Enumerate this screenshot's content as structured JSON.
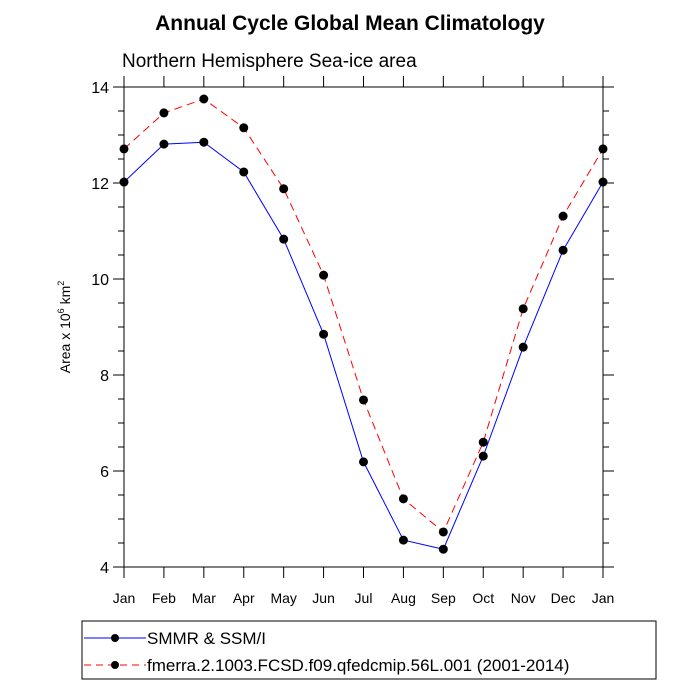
{
  "chart_data": {
    "type": "line",
    "title": "Annual Cycle Global Mean Climatology",
    "subtitle": "Northern Hemisphere Sea-ice area",
    "ylabel_prefix": "Area x 10",
    "ylabel_exp": "6",
    "ylabel_unit": " km",
    "ylabel_unit_exp": "2",
    "xlabel": "",
    "categories": [
      "Jan",
      "Feb",
      "Mar",
      "Apr",
      "May",
      "Jun",
      "Jul",
      "Aug",
      "Sep",
      "Oct",
      "Nov",
      "Dec",
      "Jan"
    ],
    "ylim": [
      4,
      14
    ],
    "yticks": [
      4,
      6,
      8,
      10,
      12,
      14
    ],
    "grid": false,
    "legend_placement": "bottom",
    "series": [
      {
        "name": "SMMR & SSM/I",
        "color": "#0000ff",
        "dash": "solid",
        "values": [
          12.02,
          12.81,
          12.85,
          12.23,
          10.83,
          8.85,
          6.19,
          4.56,
          4.37,
          6.31,
          8.58,
          10.6,
          12.02
        ]
      },
      {
        "name": "fmerra.2.1003.FCSD.f09.qfedcmip.56L.001 (2001-2014)",
        "color": "#ff0000",
        "dash": "dashed",
        "values": [
          12.71,
          13.46,
          13.75,
          13.15,
          11.88,
          10.08,
          7.48,
          5.42,
          4.73,
          6.6,
          9.38,
          11.31,
          12.71
        ]
      }
    ]
  }
}
